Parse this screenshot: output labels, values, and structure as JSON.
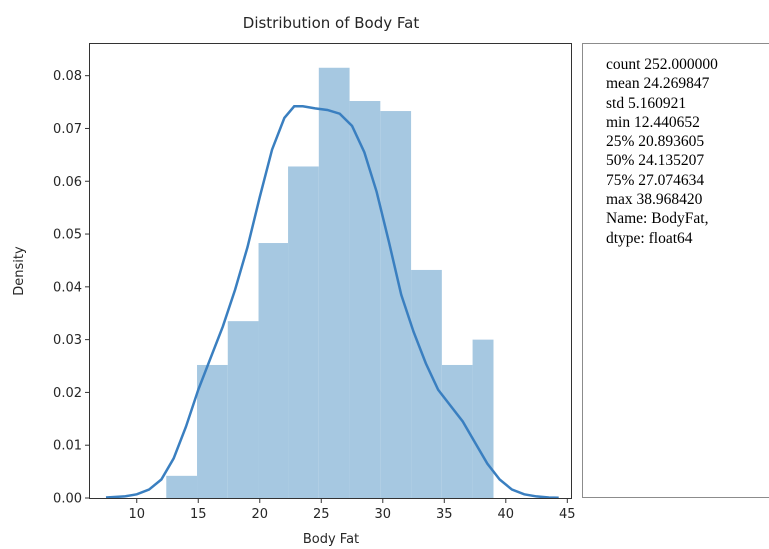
{
  "chart_data": {
    "type": "histogram",
    "title": "Distribution of Body Fat",
    "xlabel": "Body Fat",
    "ylabel": "Density",
    "xlim": [
      6.2,
      45.3
    ],
    "ylim": [
      0,
      0.086
    ],
    "x_ticks": [
      10,
      15,
      20,
      25,
      30,
      35,
      40,
      45
    ],
    "y_ticks": [
      "0.00",
      "0.01",
      "0.02",
      "0.03",
      "0.04",
      "0.05",
      "0.06",
      "0.07",
      "0.08"
    ],
    "bin_edges": [
      12.4,
      14.9,
      17.4,
      19.9,
      22.3,
      24.8,
      27.3,
      29.8,
      32.3,
      34.8,
      37.3,
      39.0
    ],
    "bins": [
      {
        "x0": 12.4,
        "x1": 14.9,
        "density": 0.0042
      },
      {
        "x0": 14.9,
        "x1": 17.4,
        "density": 0.0252
      },
      {
        "x0": 17.4,
        "x1": 19.9,
        "density": 0.0335
      },
      {
        "x0": 19.9,
        "x1": 22.3,
        "density": 0.0483
      },
      {
        "x0": 22.3,
        "x1": 24.8,
        "density": 0.0628
      },
      {
        "x0": 24.8,
        "x1": 27.3,
        "density": 0.0815
      },
      {
        "x0": 27.3,
        "x1": 29.8,
        "density": 0.0752
      },
      {
        "x0": 29.8,
        "x1": 32.3,
        "density": 0.0733
      },
      {
        "x0": 32.3,
        "x1": 34.8,
        "density": 0.0432
      },
      {
        "x0": 34.8,
        "x1": 37.3,
        "density": 0.0252
      },
      {
        "x0": 37.3,
        "x1": 39.0,
        "density": 0.03
      }
    ],
    "kde": {
      "x": [
        7.5,
        9,
        10,
        11,
        12,
        13,
        14,
        15,
        16,
        17,
        18,
        19,
        20,
        21,
        22,
        22.8,
        23.5,
        24.5,
        25.5,
        26.5,
        27.5,
        28.5,
        29.5,
        30.5,
        31.5,
        32.5,
        33.5,
        34.5,
        35.5,
        36.5,
        37.5,
        38.5,
        39.5,
        40.5,
        41.5,
        42.5,
        43.5,
        44.3
      ],
      "y": [
        0.0001,
        0.0003,
        0.0007,
        0.0016,
        0.0035,
        0.0075,
        0.0135,
        0.0205,
        0.0265,
        0.0325,
        0.0395,
        0.0475,
        0.057,
        0.066,
        0.072,
        0.0742,
        0.0742,
        0.0738,
        0.0735,
        0.0728,
        0.0705,
        0.0655,
        0.058,
        0.0485,
        0.0385,
        0.0315,
        0.0255,
        0.0205,
        0.0175,
        0.0145,
        0.0105,
        0.0065,
        0.0035,
        0.0016,
        0.0007,
        0.0003,
        0.0001,
        5e-05
      ]
    },
    "grid": false,
    "colors": {
      "bar": "#a6c8e1",
      "kde": "#3a7fc0",
      "axis": "#333333"
    }
  },
  "stats": {
    "lines": [
      "count 252.000000",
      "mean 24.269847",
      "std 5.160921",
      "min 12.440652",
      "25% 20.893605",
      "50% 24.135207",
      "75% 27.074634",
      "max 38.968420",
      "Name: BodyFat,",
      "dtype: float64"
    ]
  }
}
